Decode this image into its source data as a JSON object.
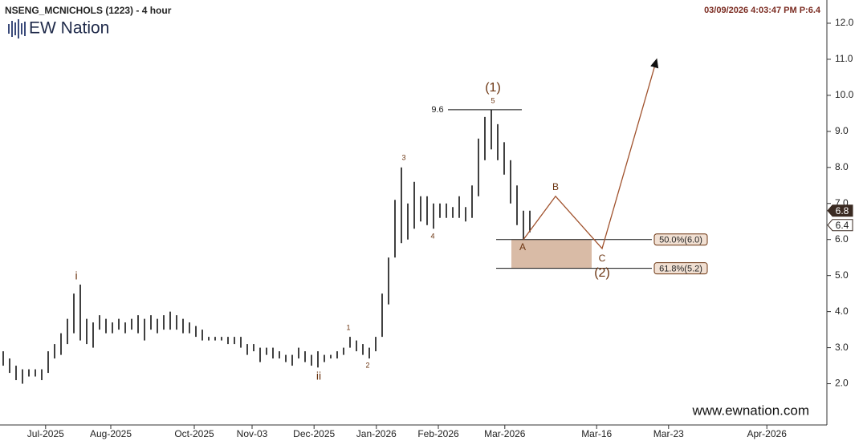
{
  "chart_data": {
    "type": "ohlc",
    "title": "NSENG_MCNICHOLS (1223) - 4 hour",
    "timestamp": "03/09/2026 4:03:47 PM  P:6.4",
    "logo": "EW Nation",
    "website": "www.ewnation.com",
    "color": "#111111",
    "bars": {
      "low": [
        2.5,
        2.3,
        2.1,
        2.0,
        2.2,
        2.2,
        2.1,
        2.3,
        2.7,
        2.8,
        3.1,
        3.4,
        3.2,
        3.1,
        3.0,
        3.5,
        3.4,
        3.4,
        3.5,
        3.4,
        3.5,
        3.4,
        3.2,
        3.5,
        3.4,
        3.5,
        3.5,
        3.5,
        3.4,
        3.4,
        3.3,
        3.2,
        3.2,
        3.2,
        3.2,
        3.1,
        3.1,
        3.0,
        2.8,
        2.9,
        2.6,
        2.8,
        2.7,
        2.7,
        2.6,
        2.5,
        2.7,
        2.6,
        2.5,
        2.45,
        2.6,
        2.7,
        2.7,
        2.8,
        3.0,
        2.9,
        2.8,
        2.7,
        2.9,
        3.3,
        4.2,
        5.5,
        5.9,
        6.0,
        6.3,
        6.5,
        6.4,
        6.3,
        6.6,
        6.6,
        6.6,
        6.6,
        6.5,
        6.6,
        7.2,
        8.2,
        8.5,
        8.2,
        7.8,
        7.0,
        6.4,
        6.0,
        6.2
      ],
      "high": [
        2.9,
        2.7,
        2.5,
        2.4,
        2.4,
        2.4,
        2.4,
        2.9,
        3.1,
        3.4,
        3.8,
        4.5,
        4.75,
        3.8,
        3.7,
        3.9,
        3.8,
        3.7,
        3.8,
        3.7,
        3.8,
        3.9,
        3.8,
        3.9,
        3.8,
        3.9,
        4.0,
        3.9,
        3.8,
        3.7,
        3.6,
        3.5,
        3.3,
        3.3,
        3.3,
        3.3,
        3.3,
        3.3,
        3.1,
        3.1,
        3.0,
        3.0,
        3.0,
        2.9,
        2.8,
        2.8,
        3.0,
        2.9,
        2.8,
        2.9,
        2.8,
        2.8,
        2.9,
        3.0,
        3.3,
        3.2,
        3.1,
        3.0,
        3.3,
        4.5,
        5.5,
        7.1,
        8.0,
        7.0,
        7.6,
        7.2,
        7.2,
        7.0,
        7.0,
        7.0,
        6.9,
        7.2,
        6.9,
        7.5,
        8.8,
        9.4,
        9.6,
        9.2,
        8.7,
        8.2,
        7.5,
        6.8,
        6.8
      ]
    },
    "xlim": [
      0,
      129
    ],
    "xticks": [
      {
        "value": 7.1,
        "label": "Jul-2025"
      },
      {
        "value": 17.25,
        "label": "Aug-2025"
      },
      {
        "value": 30.25,
        "label": "Oct-2025"
      },
      {
        "value": 39.25,
        "label": "Nov-03"
      },
      {
        "value": 48.9,
        "label": "Dec-2025"
      },
      {
        "value": 58.6,
        "label": "Jan-2026"
      },
      {
        "value": 68.25,
        "label": "Feb-2026"
      },
      {
        "value": 78.6,
        "label": "Mar-2026"
      },
      {
        "value": 92.9,
        "label": "Mar-16"
      },
      {
        "value": 104.1,
        "label": "Mar-23"
      },
      {
        "value": 119.4,
        "label": "Apr-2026"
      }
    ],
    "ylim": [
      0.9,
      12.6
    ],
    "yticks": [
      {
        "value": 2,
        "label": "2.0"
      },
      {
        "value": 3,
        "label": "3.0"
      },
      {
        "value": 4,
        "label": "4.0"
      },
      {
        "value": 5,
        "label": "5.0"
      },
      {
        "value": 6,
        "label": "6.0"
      },
      {
        "value": 7,
        "label": "7.0"
      },
      {
        "value": 8,
        "label": "8.0"
      },
      {
        "value": 9,
        "label": "9.0"
      },
      {
        "value": 10,
        "label": "10.0"
      },
      {
        "value": 11,
        "label": "11.0"
      },
      {
        "value": 12,
        "label": "12.0"
      }
    ],
    "high_level": 9.6,
    "fib_levels": [
      {
        "value": 6.0,
        "label": "50.0%(6.0)"
      },
      {
        "value": 5.2,
        "label": "61.8%(5.2)"
      }
    ],
    "projection": {
      "color": "#a0522d",
      "x": [
        81.5,
        86.5,
        93.75,
        102.25
      ],
      "values": [
        6.0,
        7.2,
        5.75,
        11.0
      ]
    },
    "price_badges": [
      6.8,
      6.4
    ],
    "wave_labels": [
      "i",
      "ii",
      "1",
      "2",
      "3",
      "4",
      "5",
      "(1)",
      "A",
      "B",
      "C",
      "(2)"
    ]
  }
}
